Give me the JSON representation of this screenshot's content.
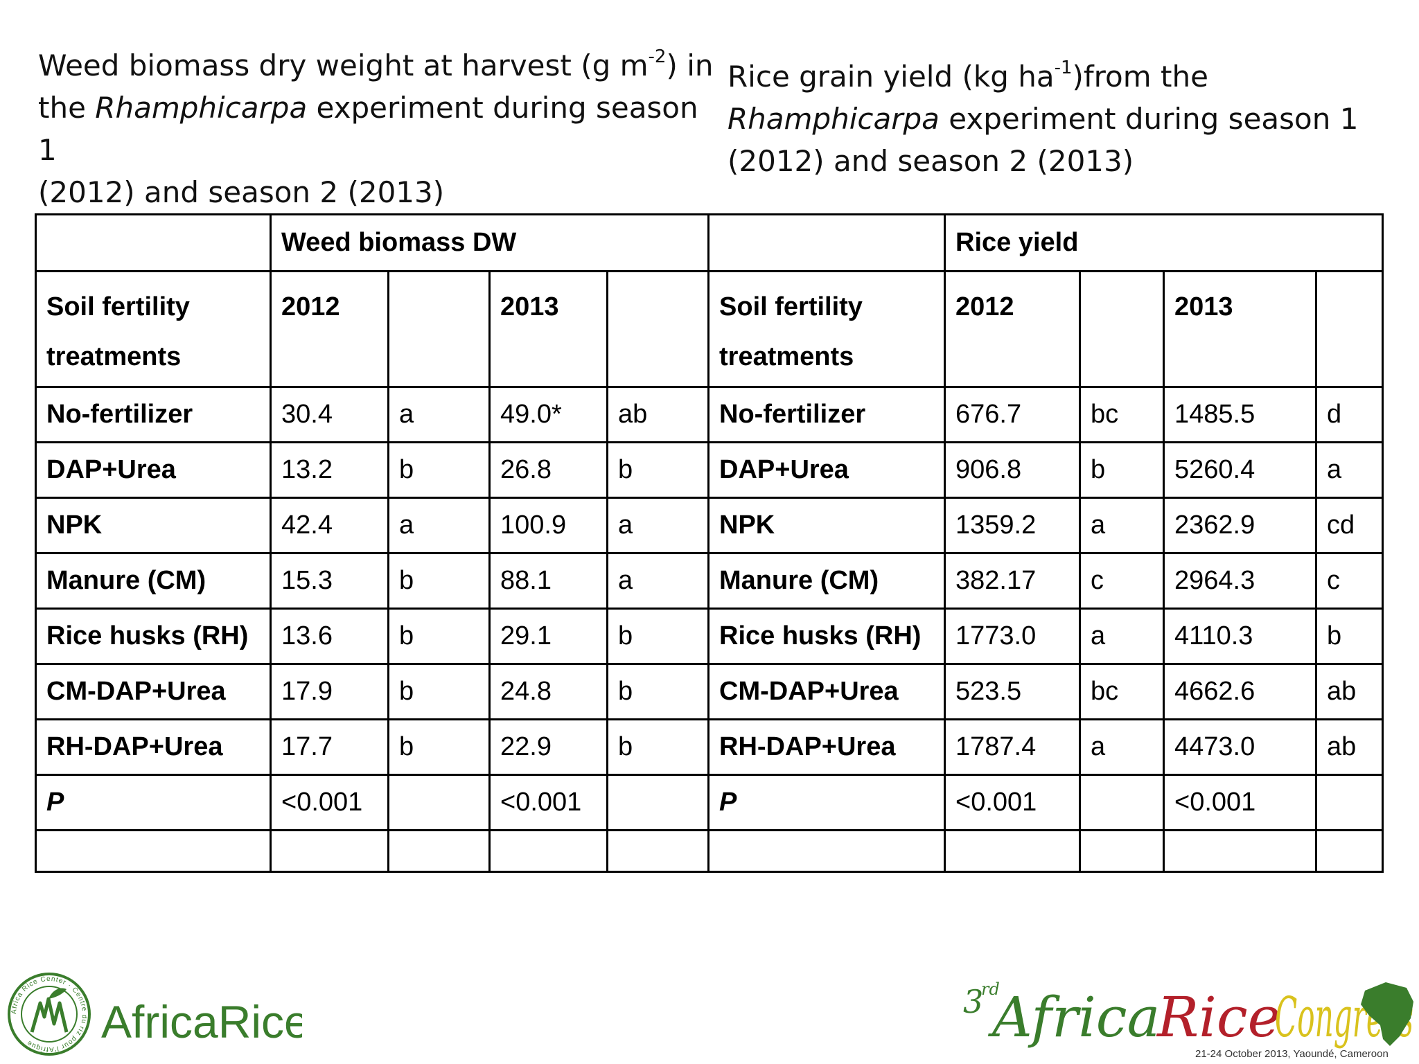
{
  "titles": {
    "left": {
      "line1_pre": "Weed biomass dry weight at harvest (g m",
      "line1_sup": "-2",
      "line1_post": ") in",
      "line2_pre": "the ",
      "line2_italic": "Rhamphicarpa",
      "line2_post": " experiment during season 1",
      "line3": "(2012) and season 2 (2013)"
    },
    "right": {
      "line1_pre": "Rice grain yield (kg ha",
      "line1_sup": "-1",
      "line1_post": ")from the",
      "line2_italic": "Rhamphicarpa",
      "line2_post": " experiment during season 1",
      "line3": "(2012) and season 2 (2013)"
    }
  },
  "table": {
    "group_headers": {
      "weed": "Weed biomass DW",
      "rice": "Rice yield"
    },
    "treatment_header_line1": "Soil fertility",
    "treatment_header_line2": "treatments",
    "years": [
      "2012",
      "2013"
    ],
    "rows": [
      {
        "treatment": "No-fertilizer",
        "w2012": "30.4",
        "w2012s": "a",
        "w2013": "49.0*",
        "w2013s": "ab",
        "r2012": "676.7",
        "r2012s": "bc",
        "r2013": "1485.5",
        "r2013s": "d"
      },
      {
        "treatment": "DAP+Urea",
        "w2012": "13.2",
        "w2012s": "b",
        "w2013": "26.8",
        "w2013s": "b",
        "r2012": "906.8",
        "r2012s": "b",
        "r2013": "5260.4",
        "r2013s": "a"
      },
      {
        "treatment": "NPK",
        "w2012": "42.4",
        "w2012s": "a",
        "w2013": "100.9",
        "w2013s": "a",
        "r2012": "1359.2",
        "r2012s": "a",
        "r2013": "2362.9",
        "r2013s": "cd"
      },
      {
        "treatment": "Manure (CM)",
        "w2012": "15.3",
        "w2012s": "b",
        "w2013": "88.1",
        "w2013s": "a",
        "r2012": "382.17",
        "r2012s": "c",
        "r2013": "2964.3",
        "r2013s": "c"
      },
      {
        "treatment": "Rice husks (RH)",
        "w2012": "13.6",
        "w2012s": "b",
        "w2013": "29.1",
        "w2013s": "b",
        "r2012": "1773.0",
        "r2012s": "a",
        "r2013": "4110.3",
        "r2013s": "b"
      },
      {
        "treatment": "CM-DAP+Urea",
        "w2012": "17.9",
        "w2012s": "b",
        "w2013": "24.8",
        "w2013s": "b",
        "r2012": "523.5",
        "r2012s": "bc",
        "r2013": "4662.6",
        "r2013s": "ab"
      },
      {
        "treatment": "RH-DAP+Urea",
        "w2012": "17.7",
        "w2012s": "b",
        "w2013": "22.9",
        "w2013s": "b",
        "r2012": "1787.4",
        "r2012s": "a",
        "r2013": "4473.0",
        "r2013s": "ab"
      }
    ],
    "p_row": {
      "label": "P",
      "w2012": "<0.001",
      "w2013": "<0.001",
      "r2012": "<0.001",
      "r2013": "<0.001"
    }
  },
  "logos": {
    "africarice": {
      "wordmark": "AfricaRice",
      "seal_text": "Africa Rice Center · Centre du riz pour l'Afrique",
      "color_green": "#3a7d2c",
      "color_gray": "#6d6e71"
    },
    "congress": {
      "ordinal": "3",
      "ordinal_sup": "rd",
      "word1": "Africa",
      "word2": "Rice",
      "word3": "Congress",
      "subtitle": "21-24 October 2013, Yaoundé, Cameroon",
      "color_green": "#3a7d2c",
      "color_red": "#b3202a",
      "color_yellow": "#d9c21d"
    }
  }
}
